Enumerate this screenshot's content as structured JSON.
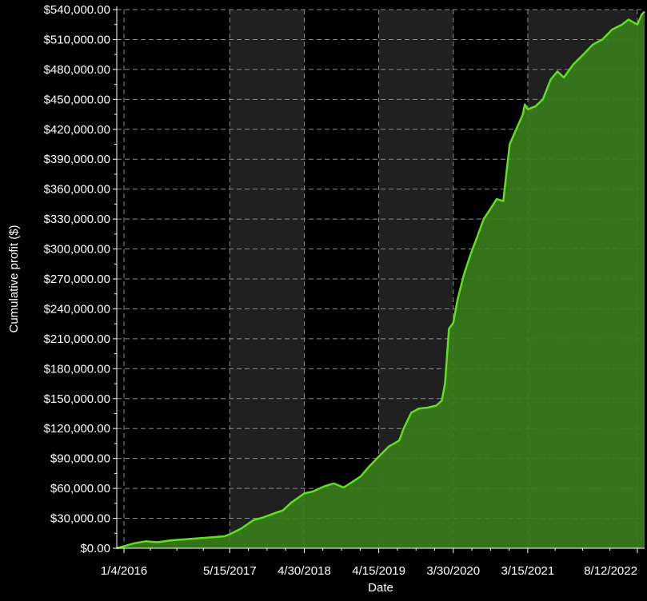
{
  "chart_data": {
    "type": "area",
    "title": "",
    "xlabel": "Date",
    "ylabel": "Cumulative profit ($)",
    "x_tick_labels": [
      "1/4/2016",
      "5/15/2017",
      "4/30/2018",
      "4/15/2019",
      "3/30/2020",
      "3/15/2021",
      "8/12/2022"
    ],
    "x_ticks": [
      "2016-01-04",
      "2017-05-15",
      "2018-04-30",
      "2019-04-15",
      "2020-03-30",
      "2021-03-15",
      "2022-08-12"
    ],
    "xlim": [
      "2015-12-01",
      "2022-09-15"
    ],
    "ylim": [
      0,
      540000
    ],
    "y_tick_labels": [
      "$0.00",
      "$30,000.00",
      "$60,000.00",
      "$90,000.00",
      "$120,000.00",
      "$150,000.00",
      "$180,000.00",
      "$210,000.00",
      "$240,000.00",
      "$270,000.00",
      "$300,000.00",
      "$330,000.00",
      "$360,000.00",
      "$390,000.00",
      "$420,000.00",
      "$450,000.00",
      "$480,000.00",
      "$510,000.00",
      "$540,000.00"
    ],
    "y_ticks": [
      0,
      30000,
      60000,
      90000,
      120000,
      150000,
      180000,
      210000,
      240000,
      270000,
      300000,
      330000,
      360000,
      390000,
      420000,
      450000,
      480000,
      510000,
      540000
    ],
    "grid": true,
    "series": [
      {
        "color": "#5fdf1f",
        "fill": "#3a7d1c",
        "x": [
          "2015-12-01",
          "2016-01-04",
          "2016-02-20",
          "2016-04-15",
          "2016-06-10",
          "2016-08-15",
          "2016-10-20",
          "2016-12-20",
          "2017-02-20",
          "2017-04-20",
          "2017-05-15",
          "2017-07-10",
          "2017-09-01",
          "2017-10-20",
          "2017-12-10",
          "2018-01-20",
          "2018-03-01",
          "2018-04-30",
          "2018-06-10",
          "2018-08-01",
          "2018-09-15",
          "2018-11-01",
          "2018-12-15",
          "2019-01-20",
          "2019-03-01",
          "2019-04-15",
          "2019-06-01",
          "2019-07-20",
          "2019-08-10",
          "2019-09-15",
          "2019-10-20",
          "2019-12-01",
          "2020-01-10",
          "2020-02-05",
          "2020-02-20",
          "2020-03-10",
          "2020-03-30",
          "2020-04-20",
          "2020-05-20",
          "2020-06-20",
          "2020-07-20",
          "2020-08-20",
          "2020-09-20",
          "2020-10-20",
          "2020-11-20",
          "2020-12-20",
          "2021-01-20",
          "2021-02-20",
          "2021-03-01",
          "2021-03-15",
          "2021-04-20",
          "2021-05-25",
          "2021-07-01",
          "2021-08-01",
          "2021-09-01",
          "2021-10-15",
          "2021-12-01",
          "2022-01-15",
          "2022-03-01",
          "2022-04-15",
          "2022-06-01",
          "2022-07-01",
          "2022-08-12",
          "2022-09-01",
          "2022-09-15"
        ],
        "y": [
          0,
          2000,
          5000,
          7000,
          6000,
          8000,
          9000,
          10000,
          11000,
          12000,
          14000,
          20000,
          28000,
          31000,
          35000,
          38000,
          46000,
          55000,
          57000,
          62000,
          65000,
          61000,
          67000,
          72000,
          82000,
          92000,
          102000,
          108000,
          120000,
          136000,
          140000,
          141000,
          143000,
          148000,
          165000,
          220000,
          226000,
          250000,
          275000,
          295000,
          312000,
          330000,
          340000,
          350000,
          348000,
          405000,
          420000,
          435000,
          445000,
          440000,
          443000,
          450000,
          470000,
          478000,
          472000,
          485000,
          495000,
          505000,
          510000,
          520000,
          525000,
          530000,
          525000,
          535000,
          538000
        ]
      }
    ]
  }
}
